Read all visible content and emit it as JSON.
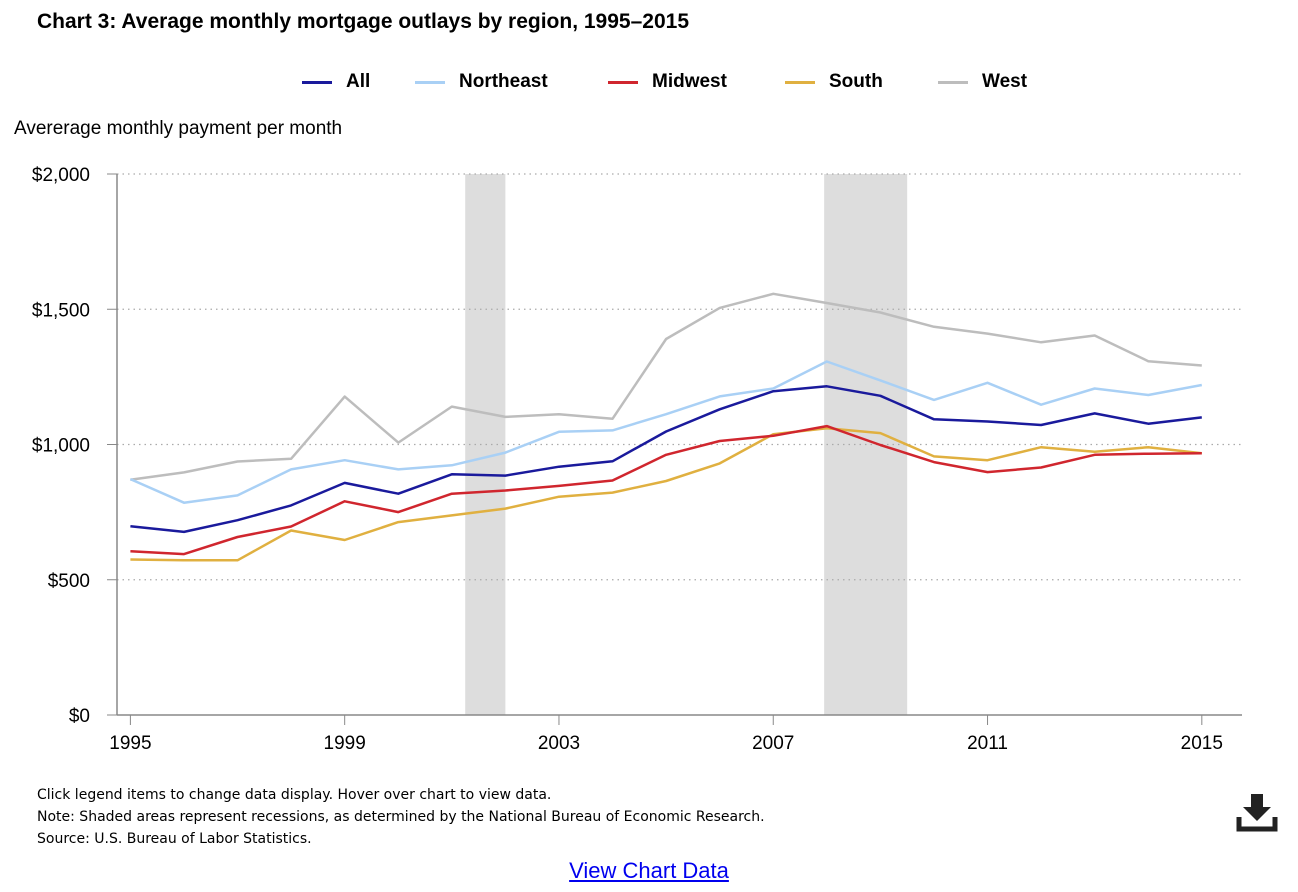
{
  "title": "Chart 3: Average monthly mortgage outlays by region, 1995–2015",
  "legend": [
    {
      "name": "All",
      "color": "#1a1a9c"
    },
    {
      "name": "Northeast",
      "color": "#a9d0f5"
    },
    {
      "name": "Midwest",
      "color": "#d0262e"
    },
    {
      "name": "South",
      "color": "#e0b040"
    },
    {
      "name": "West",
      "color": "#bdbdbd"
    }
  ],
  "notes": {
    "line1": "Click legend items to change data display. Hover over chart to view data.",
    "line2": "Note: Shaded areas represent recessions, as determined by the National Bureau of Economic Research.",
    "line3": "Source: U.S. Bureau of Labor Statistics."
  },
  "download_icon": "download-icon",
  "view_chart_data_label": "View Chart Data",
  "chart_data": {
    "type": "line",
    "ylabel": "Avererage monthly payment per month",
    "xlabel": "",
    "x": [
      1995,
      1996,
      1997,
      1998,
      1999,
      2000,
      2001,
      2002,
      2003,
      2004,
      2005,
      2006,
      2007,
      2008,
      2009,
      2010,
      2011,
      2012,
      2013,
      2014,
      2015
    ],
    "xlim": [
      1994.75,
      2015.75
    ],
    "ylim": [
      0,
      2000
    ],
    "x_ticks": [
      1995,
      1999,
      2003,
      2007,
      2011,
      2015
    ],
    "y_ticks": [
      0,
      500,
      1000,
      1500,
      2000
    ],
    "y_tick_labels": [
      "$0",
      "$500",
      "$1,000",
      "$1,500",
      "$2,000"
    ],
    "grid": "horizontal dotted",
    "legend_position": "top",
    "recessions": [
      [
        2001.25,
        2002.0
      ],
      [
        2007.95,
        2009.5
      ]
    ],
    "series": [
      {
        "name": "West",
        "color": "#bdbdbd",
        "values": [
          870,
          897,
          937,
          947,
          1177,
          1007,
          1140,
          1102,
          1112,
          1095,
          1390,
          1505,
          1557,
          1523,
          1488,
          1435,
          1410,
          1378,
          1403,
          1308,
          1292
        ]
      },
      {
        "name": "Northeast",
        "color": "#a9d0f5",
        "values": [
          872,
          785,
          812,
          908,
          942,
          908,
          923,
          970,
          1047,
          1052,
          1112,
          1178,
          1207,
          1307,
          1237,
          1165,
          1228,
          1147,
          1207,
          1183,
          1220
        ]
      },
      {
        "name": "South",
        "color": "#e0b040",
        "values": [
          575,
          572,
          572,
          682,
          647,
          713,
          738,
          763,
          807,
          822,
          865,
          930,
          1038,
          1060,
          1042,
          956,
          942,
          990,
          973,
          990,
          968
        ]
      },
      {
        "name": "Midwest",
        "color": "#d0262e",
        "values": [
          605,
          595,
          658,
          697,
          790,
          750,
          818,
          830,
          847,
          867,
          962,
          1013,
          1032,
          1068,
          998,
          935,
          898,
          915,
          962,
          966,
          968
        ]
      },
      {
        "name": "All",
        "color": "#1a1a9c",
        "values": [
          698,
          677,
          720,
          775,
          858,
          818,
          890,
          885,
          918,
          938,
          1048,
          1130,
          1197,
          1215,
          1180,
          1093,
          1085,
          1072,
          1115,
          1077,
          1100
        ]
      }
    ]
  }
}
